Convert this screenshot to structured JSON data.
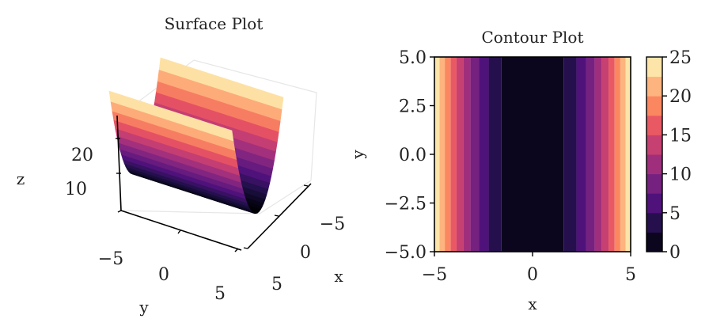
{
  "chart_data": [
    {
      "type": "surface",
      "title": "Surface Plot",
      "function": "z = x^2",
      "xlabel": "x",
      "ylabel": "y",
      "zlabel": "z",
      "xlim": [
        -5,
        5
      ],
      "ylim": [
        -5,
        5
      ],
      "zlim": [
        0,
        25
      ],
      "x_ticks": [
        "−5",
        "0",
        "5"
      ],
      "y_ticks": [
        "−5",
        "0",
        "5"
      ],
      "z_ticks": [
        "10",
        "20"
      ],
      "colormap": "magma",
      "grid": true
    },
    {
      "type": "contour",
      "title": "Contour Plot",
      "function": "z = x^2",
      "xlabel": "x",
      "ylabel": "y",
      "xlim": [
        -5,
        5
      ],
      "ylim": [
        -5,
        5
      ],
      "x_ticks": [
        "−5",
        "0",
        "5"
      ],
      "y_ticks": [
        "−5.0",
        "−2.5",
        "0.0",
        "2.5",
        "5.0"
      ],
      "levels": [
        0,
        2.5,
        5,
        7.5,
        10,
        12.5,
        15,
        17.5,
        20,
        22.5,
        25
      ],
      "colorbar_ticks": [
        "0",
        "5",
        "10",
        "15",
        "20",
        "25"
      ],
      "colormap": "magma",
      "legend": "colorbar-right"
    }
  ]
}
